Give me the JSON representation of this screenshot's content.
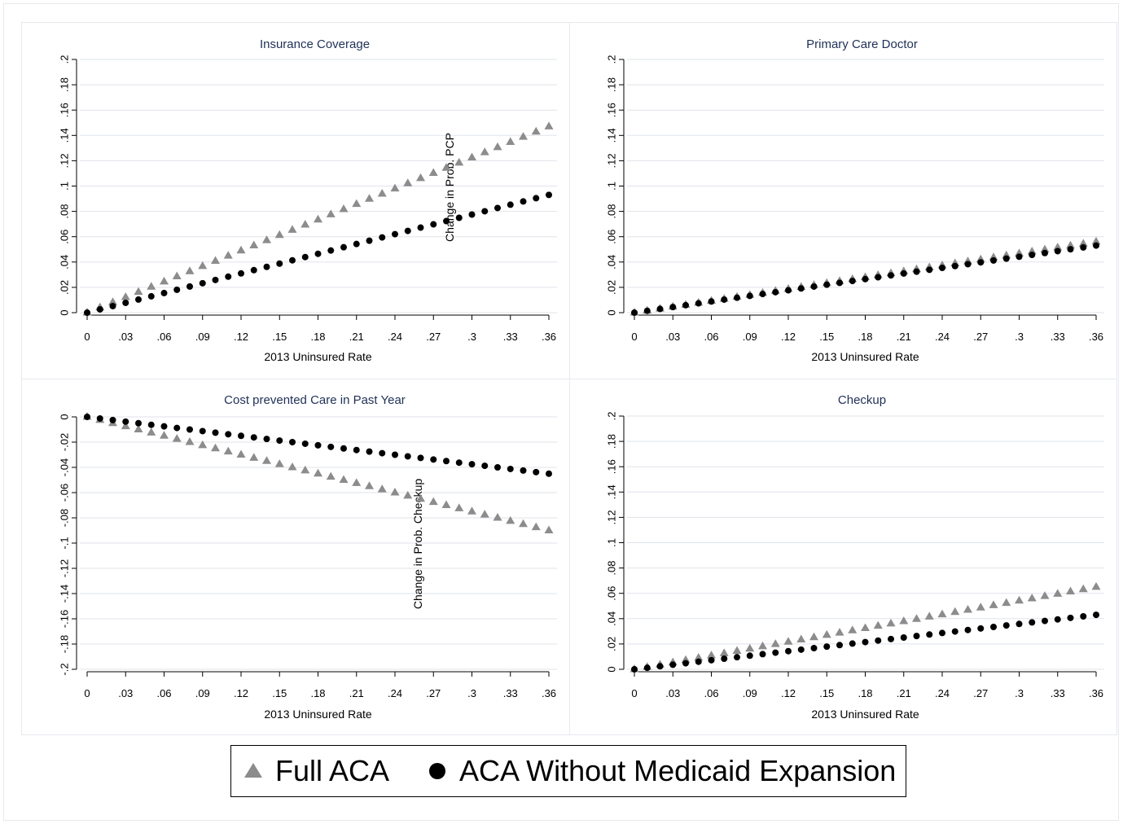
{
  "chart_data": [
    {
      "type": "scatter",
      "title": "Insurance Coverage",
      "xlabel": "2013 Uninsured Rate",
      "ylabel": "Change in Prob. PCP",
      "xlim": [
        0,
        0.36
      ],
      "ylim": [
        0,
        0.2
      ],
      "xticks": [
        "0",
        ".03",
        ".06",
        ".09",
        ".12",
        ".15",
        ".18",
        ".21",
        ".24",
        ".27",
        ".3",
        ".33",
        ".36"
      ],
      "yticks": [
        "0",
        ".02",
        ".04",
        ".06",
        ".08",
        ".1",
        ".12",
        ".14",
        ".16",
        ".18",
        ".2"
      ],
      "grid": true,
      "series": [
        {
          "name": "Full ACA",
          "start": 0,
          "end": 0.147
        },
        {
          "name": "ACA Without Medicaid Expansion",
          "start": 0,
          "end": 0.093
        }
      ]
    },
    {
      "type": "scatter",
      "title": "Primary Care Doctor",
      "xlabel": "2013 Uninsured Rate",
      "ylabel": "",
      "xlim": [
        0,
        0.36
      ],
      "ylim": [
        0,
        0.2
      ],
      "xticks": [
        "0",
        ".03",
        ".06",
        ".09",
        ".12",
        ".15",
        ".18",
        ".21",
        ".24",
        ".27",
        ".3",
        ".33",
        ".36"
      ],
      "yticks": [
        "0",
        ".02",
        ".04",
        ".06",
        ".08",
        ".1",
        ".12",
        ".14",
        ".16",
        ".18",
        ".2"
      ],
      "grid": true,
      "series": [
        {
          "name": "Full ACA",
          "start": 0,
          "end": 0.056
        },
        {
          "name": "ACA Without Medicaid Expansion",
          "start": 0,
          "end": 0.053
        }
      ]
    },
    {
      "type": "scatter",
      "title": "Cost prevented Care in Past Year",
      "xlabel": "2013 Uninsured Rate",
      "ylabel": "Change in Prob. Checkup",
      "xlim": [
        0,
        0.36
      ],
      "ylim": [
        -0.2,
        0
      ],
      "xticks": [
        "0",
        ".03",
        ".06",
        ".09",
        ".12",
        ".15",
        ".18",
        ".21",
        ".24",
        ".27",
        ".3",
        ".33",
        ".36"
      ],
      "yticks": [
        "0",
        "-.02",
        "-.04",
        "-.06",
        "-.08",
        "-.1",
        "-.12",
        "-.14",
        "-.16",
        "-.18",
        "-.2"
      ],
      "grid": true,
      "series": [
        {
          "name": "Full ACA",
          "start": 0,
          "end": -0.09
        },
        {
          "name": "ACA Without Medicaid Expansion",
          "start": 0,
          "end": -0.045
        }
      ]
    },
    {
      "type": "scatter",
      "title": "Checkup",
      "xlabel": "2013 Uninsured Rate",
      "ylabel": "",
      "xlim": [
        0,
        0.36
      ],
      "ylim": [
        0,
        0.2
      ],
      "xticks": [
        "0",
        ".03",
        ".06",
        ".09",
        ".12",
        ".15",
        ".18",
        ".21",
        ".24",
        ".27",
        ".3",
        ".33",
        ".36"
      ],
      "yticks": [
        "0",
        ".02",
        ".04",
        ".06",
        ".08",
        ".1",
        ".12",
        ".14",
        ".16",
        ".18",
        ".2"
      ],
      "grid": true,
      "series": [
        {
          "name": "Full ACA",
          "start": 0,
          "end": 0.065
        },
        {
          "name": "ACA Without Medicaid Expansion",
          "start": 0,
          "end": 0.043
        }
      ]
    }
  ],
  "x_step": 0.01,
  "colors": {
    "full_aca": "#8c8c8c",
    "without_expansion": "#000000",
    "title": "#1f3056",
    "grid": "#dfe3ea"
  },
  "legend": {
    "items": [
      {
        "label": "Full ACA",
        "marker": "triangle-icon"
      },
      {
        "label": "ACA Without Medicaid Expansion",
        "marker": "circle-icon"
      }
    ],
    "placement": "bottom"
  }
}
